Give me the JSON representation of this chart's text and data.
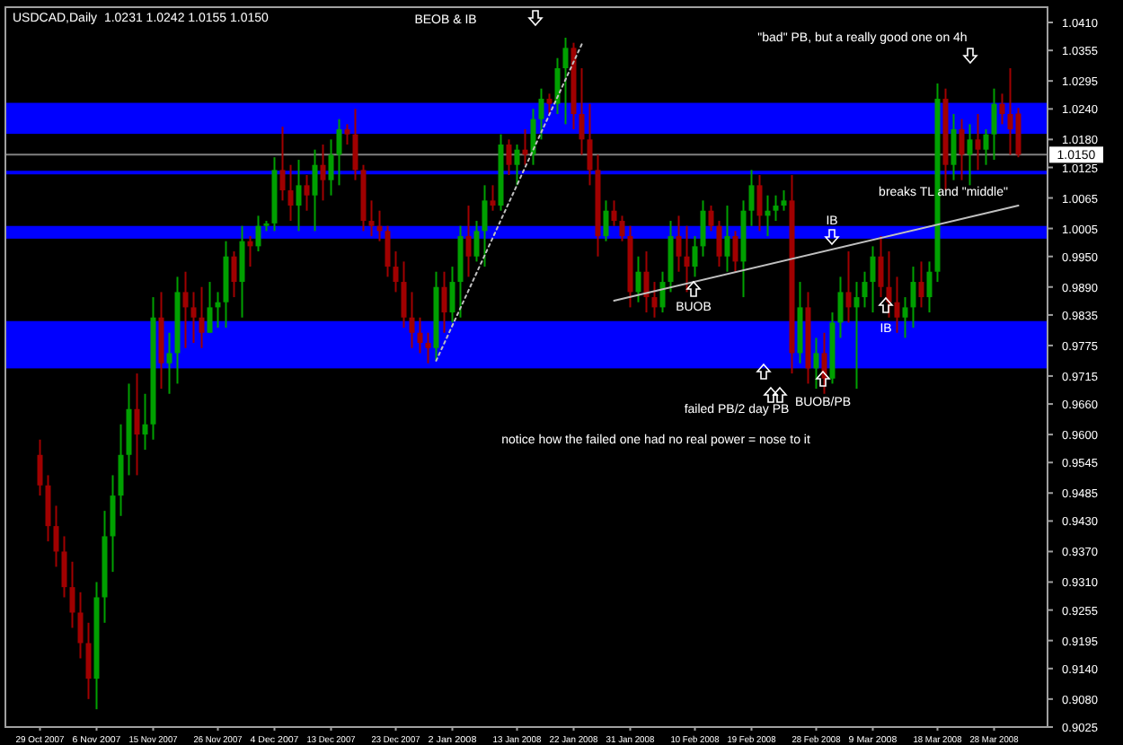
{
  "chart_data": {
    "type": "candlestick",
    "title": "USDCAD,Daily  1.0231 1.0242 1.0155 1.0150",
    "categories": [
      "29 Oct 2007",
      null,
      null,
      null,
      null,
      null,
      null,
      "6 Nov 2007",
      null,
      null,
      null,
      null,
      null,
      null,
      "15 Nov 2007",
      null,
      null,
      null,
      null,
      null,
      null,
      null,
      "26 Nov 2007",
      null,
      null,
      null,
      null,
      null,
      null,
      "4 Dec 2007",
      null,
      null,
      null,
      null,
      null,
      null,
      "13 Dec 2007",
      null,
      null,
      null,
      null,
      null,
      null,
      null,
      "23 Dec 2007",
      null,
      null,
      null,
      null,
      null,
      null,
      "2 Jan 2008",
      null,
      null,
      null,
      null,
      null,
      null,
      null,
      "13 Jan 2008",
      null,
      null,
      null,
      null,
      null,
      null,
      "22 Jan 2008",
      null,
      null,
      null,
      null,
      null,
      null,
      "31 Jan 2008",
      null,
      null,
      null,
      null,
      null,
      null,
      null,
      "10 Feb 2008",
      null,
      null,
      null,
      null,
      null,
      null,
      "19 Feb 2008",
      null,
      null,
      null,
      null,
      null,
      null,
      null,
      "28 Feb 2008",
      null,
      null,
      null,
      null,
      null,
      null,
      "9 Mar 2008",
      null,
      null,
      null,
      null,
      null,
      null,
      null,
      "18 Mar 2008",
      null,
      null,
      null,
      null,
      null,
      null,
      "28 Mar 2008",
      null,
      null,
      null
    ],
    "ohlc": [
      [
        0.956,
        0.959,
        0.948,
        0.95
      ],
      [
        0.95,
        0.952,
        0.939,
        0.942
      ],
      [
        0.942,
        0.946,
        0.934,
        0.937
      ],
      [
        0.937,
        0.94,
        0.928,
        0.93
      ],
      [
        0.93,
        0.935,
        0.922,
        0.925
      ],
      [
        0.925,
        0.929,
        0.916,
        0.919
      ],
      [
        0.919,
        0.923,
        0.908,
        0.912
      ],
      [
        0.912,
        0.931,
        0.906,
        0.928
      ],
      [
        0.928,
        0.945,
        0.923,
        0.94
      ],
      [
        0.94,
        0.952,
        0.933,
        0.948
      ],
      [
        0.948,
        0.962,
        0.944,
        0.956
      ],
      [
        0.956,
        0.97,
        0.952,
        0.965
      ],
      [
        0.965,
        0.972,
        0.952,
        0.96
      ],
      [
        0.96,
        0.968,
        0.957,
        0.962
      ],
      [
        0.962,
        0.987,
        0.959,
        0.983
      ],
      [
        0.983,
        0.988,
        0.969,
        0.974
      ],
      [
        0.974,
        0.98,
        0.968,
        0.976
      ],
      [
        0.976,
        0.991,
        0.97,
        0.988
      ],
      [
        0.988,
        0.992,
        0.977,
        0.985
      ],
      [
        0.985,
        0.988,
        0.978,
        0.983
      ],
      [
        0.983,
        0.989,
        0.977,
        0.98
      ],
      [
        0.98,
        0.99,
        0.98,
        0.985
      ],
      [
        0.985,
        0.988,
        0.981,
        0.986
      ],
      [
        0.986,
        0.998,
        0.981,
        0.995
      ],
      [
        0.995,
        0.996,
        0.987,
        0.99
      ],
      [
        0.99,
        1.001,
        0.983,
        0.998
      ],
      [
        0.998,
        0.999,
        0.993,
        0.997
      ],
      [
        0.997,
        1.003,
        0.996,
        1.001
      ],
      [
        1.001,
        1.002,
        1.0,
        1.0015
      ],
      [
        1.0015,
        1.0145,
        1.0,
        1.012
      ],
      [
        1.012,
        1.0205,
        1.006,
        1.008
      ],
      [
        1.008,
        1.013,
        1.002,
        1.005
      ],
      [
        1.005,
        1.014,
        1.0,
        1.009
      ],
      [
        1.009,
        1.011,
        1.004,
        1.007
      ],
      [
        1.007,
        1.016,
        1.0,
        1.013
      ],
      [
        1.013,
        1.017,
        1.006,
        1.01
      ],
      [
        1.01,
        1.018,
        1.007,
        1.015
      ],
      [
        1.015,
        1.022,
        1.009,
        1.02
      ],
      [
        1.02,
        1.021,
        1.017,
        1.019
      ],
      [
        1.019,
        1.024,
        1.01,
        1.012
      ],
      [
        1.012,
        1.013,
        1.0,
        1.002
      ],
      [
        1.002,
        1.006,
        0.999,
        1.001
      ],
      [
        1.001,
        1.004,
        0.998,
        1.0
      ],
      [
        1.0,
        1.001,
        0.991,
        0.993
      ],
      [
        0.993,
        0.996,
        0.988,
        0.99
      ],
      [
        0.99,
        0.994,
        0.981,
        0.983
      ],
      [
        0.983,
        0.988,
        0.977,
        0.98
      ],
      [
        0.98,
        0.983,
        0.976,
        0.978
      ],
      [
        0.978,
        0.98,
        0.974,
        0.977
      ],
      [
        0.977,
        0.992,
        0.9745,
        0.989
      ],
      [
        0.989,
        0.992,
        0.98,
        0.984
      ],
      [
        0.984,
        0.993,
        0.982,
        0.99
      ],
      [
        0.99,
        1.001,
        0.983,
        0.999
      ],
      [
        0.999,
        1.005,
        0.991,
        0.995
      ],
      [
        0.995,
        1.002,
        0.994,
        1.0
      ],
      [
        1.0,
        1.009,
        0.993,
        1.006
      ],
      [
        1.006,
        1.009,
        1.004,
        1.005
      ],
      [
        1.005,
        1.019,
        1.004,
        1.017
      ],
      [
        1.017,
        1.018,
        1.011,
        1.013
      ],
      [
        1.013,
        1.017,
        1.009,
        1.016
      ],
      [
        1.016,
        1.02,
        1.013,
        1.015
      ],
      [
        1.015,
        1.024,
        1.013,
        1.022
      ],
      [
        1.022,
        1.028,
        1.018,
        1.026
      ],
      [
        1.026,
        1.027,
        1.023,
        1.025
      ],
      [
        1.025,
        1.034,
        1.023,
        1.032
      ],
      [
        1.032,
        1.038,
        1.021,
        1.036
      ],
      [
        1.036,
        1.037,
        1.02,
        1.023
      ],
      [
        1.023,
        1.032,
        1.015,
        1.018
      ],
      [
        1.018,
        1.025,
        1.009,
        1.012
      ],
      [
        1.012,
        1.015,
        0.995,
        0.999
      ],
      [
        0.999,
        1.006,
        0.998,
        1.004
      ],
      [
        1.004,
        1.006,
        1.001,
        1.002
      ],
      [
        1.002,
        1.003,
        0.998,
        0.999
      ],
      [
        0.999,
        1.001,
        0.985,
        0.988
      ],
      [
        0.988,
        0.995,
        0.986,
        0.992
      ],
      [
        0.992,
        0.996,
        0.984,
        0.987
      ],
      [
        0.987,
        0.99,
        0.983,
        0.985
      ],
      [
        0.985,
        0.992,
        0.984,
        0.99
      ],
      [
        0.99,
        1.002,
        0.988,
        0.999
      ],
      [
        0.999,
        1.003,
        0.992,
        0.995
      ],
      [
        0.995,
        1.001,
        0.988,
        0.993
      ],
      [
        0.993,
        0.999,
        0.991,
        0.997
      ],
      [
        0.997,
        1.006,
        0.995,
        1.004
      ],
      [
        1.004,
        1.005,
        1.0,
        1.001
      ],
      [
        1.001,
        1.002,
        0.993,
        0.995
      ],
      [
        0.995,
        1.005,
        0.992,
        0.999
      ],
      [
        0.999,
        1.0,
        0.992,
        0.994
      ],
      [
        0.994,
        1.006,
        0.987,
        1.004
      ],
      [
        1.004,
        1.012,
        1.001,
        1.009
      ],
      [
        1.009,
        1.011,
        1.0,
        1.003
      ],
      [
        1.003,
        1.007,
        0.999,
        1.004
      ],
      [
        1.004,
        1.007,
        1.002,
        1.005
      ],
      [
        1.005,
        1.008,
        1.004,
        1.006
      ],
      [
        1.006,
        1.011,
        0.972,
        0.976
      ],
      [
        0.976,
        0.99,
        0.974,
        0.985
      ],
      [
        0.985,
        0.988,
        0.97,
        0.973
      ],
      [
        0.973,
        0.979,
        0.969,
        0.976
      ],
      [
        0.976,
        0.98,
        0.968,
        0.971
      ],
      [
        0.971,
        0.984,
        0.97,
        0.982
      ],
      [
        0.982,
        0.991,
        0.979,
        0.988
      ],
      [
        0.988,
        0.996,
        0.982,
        0.985
      ],
      [
        0.985,
        0.99,
        0.969,
        0.987
      ],
      [
        0.987,
        0.992,
        0.985,
        0.99
      ],
      [
        0.99,
        0.997,
        0.984,
        0.995
      ],
      [
        0.995,
        0.999,
        0.987,
        0.989
      ],
      [
        0.989,
        0.996,
        0.983,
        0.986
      ],
      [
        0.986,
        0.991,
        0.98,
        0.983
      ],
      [
        0.983,
        0.987,
        0.979,
        0.985
      ],
      [
        0.985,
        0.993,
        0.981,
        0.99
      ],
      [
        0.99,
        0.994,
        0.985,
        0.987
      ],
      [
        0.987,
        0.994,
        0.984,
        0.992
      ],
      [
        0.992,
        1.029,
        0.99,
        1.026
      ],
      [
        1.026,
        1.028,
        1.008,
        1.013
      ],
      [
        1.013,
        1.023,
        1.01,
        1.02
      ],
      [
        1.02,
        1.022,
        1.01,
        1.015
      ],
      [
        1.015,
        1.021,
        1.009,
        1.018
      ],
      [
        1.018,
        1.023,
        1.012,
        1.016
      ],
      [
        1.016,
        1.02,
        1.013,
        1.019
      ],
      [
        1.019,
        1.028,
        1.014,
        1.025
      ],
      [
        1.025,
        1.027,
        1.021,
        1.023
      ],
      [
        1.023,
        1.032,
        1.015,
        1.02
      ],
      [
        1.0231,
        1.0242,
        1.0145,
        1.015
      ]
    ],
    "colors": [
      "#a00000",
      "#a00000",
      "#a00000",
      "#a00000",
      "#a00000",
      "#a00000",
      "#a00000",
      "#00a000",
      "#00a000",
      "#00a000",
      "#00a000",
      "#00a000",
      "#a00000",
      "#00a000",
      "#00a000",
      "#a00000",
      "#00a000",
      "#00a000",
      "#a00000",
      "#a00000",
      "#a00000",
      "#00a000",
      "#00a000",
      "#00a000",
      "#a00000",
      "#00a000",
      "#a00000",
      "#00a000",
      "#00a000",
      "#00a000",
      "#a00000",
      "#a00000",
      "#00a000",
      "#a00000",
      "#00a000",
      "#a00000",
      "#00a000",
      "#00a000",
      "#a00000",
      "#a00000",
      "#a00000",
      "#a00000",
      "#a00000",
      "#a00000",
      "#a00000",
      "#a00000",
      "#a00000",
      "#a00000",
      "#a00000",
      "#00a000",
      "#a00000",
      "#00a000",
      "#00a000",
      "#a00000",
      "#00a000",
      "#00a000",
      "#a00000",
      "#00a000",
      "#a00000",
      "#00a000",
      "#a00000",
      "#00a000",
      "#00a000",
      "#a00000",
      "#00a000",
      "#00a000",
      "#a00000",
      "#a00000",
      "#a00000",
      "#a00000",
      "#00a000",
      "#a00000",
      "#a00000",
      "#a00000",
      "#00a000",
      "#a00000",
      "#a00000",
      "#00a000",
      "#00a000",
      "#a00000",
      "#a00000",
      "#00a000",
      "#00a000",
      "#a00000",
      "#a00000",
      "#00a000",
      "#a00000",
      "#00a000",
      "#00a000",
      "#a00000",
      "#00a000",
      "#00a000",
      "#00a000",
      "#a00000",
      "#00a000",
      "#a00000",
      "#00a000",
      "#a00000",
      "#00a000",
      "#00a000",
      "#a00000",
      "#00a000",
      "#00a000",
      "#00a000",
      "#a00000",
      "#a00000",
      "#a00000",
      "#00a000",
      "#00a000",
      "#a00000",
      "#00a000",
      "#00a000",
      "#a00000",
      "#00a000",
      "#a00000",
      "#00a000",
      "#a00000",
      "#00a000",
      "#00a000",
      "#a00000",
      "#a00000",
      "#a00000"
    ],
    "series": [
      {
        "type": "line",
        "color": "#c0c0c0",
        "line_style": "dotted",
        "values": [
          null,
          null,
          null,
          null,
          null,
          null,
          null,
          null,
          null,
          null,
          null,
          null,
          null,
          null,
          null,
          null,
          null,
          null,
          null,
          null,
          null,
          null,
          null,
          null,
          null,
          null,
          null,
          null,
          null,
          null,
          null,
          null,
          null,
          null,
          null,
          null,
          null,
          null,
          null,
          null,
          null,
          null,
          null,
          null,
          null,
          null,
          null,
          null,
          null,
          0.9745,
          null,
          null,
          null,
          null,
          null,
          null,
          null,
          null,
          null,
          null,
          null,
          null,
          null,
          null,
          null,
          null,
          null,
          1.0367,
          null,
          null,
          null,
          null,
          null,
          null,
          null,
          null,
          null,
          null,
          null,
          null,
          null,
          null,
          null,
          null,
          null,
          null,
          null,
          null,
          null,
          null,
          null,
          null,
          null,
          null,
          null,
          null,
          null,
          null,
          null,
          null,
          null,
          null,
          null,
          null,
          null,
          null,
          null,
          null,
          null,
          null,
          null,
          null,
          null,
          null,
          null,
          null,
          null,
          null,
          null,
          null,
          null,
          null
        ]
      },
      {
        "type": "line",
        "color": "#c0c0c0",
        "line_style": "solid",
        "values": [
          null,
          null,
          null,
          null,
          null,
          null,
          null,
          null,
          null,
          null,
          null,
          null,
          null,
          null,
          null,
          null,
          null,
          null,
          null,
          null,
          null,
          null,
          null,
          null,
          null,
          null,
          null,
          null,
          null,
          null,
          null,
          null,
          null,
          null,
          null,
          null,
          null,
          null,
          null,
          null,
          null,
          null,
          null,
          null,
          null,
          null,
          null,
          null,
          null,
          null,
          null,
          null,
          null,
          null,
          null,
          null,
          null,
          null,
          null,
          null,
          null,
          null,
          null,
          null,
          null,
          null,
          null,
          null,
          null,
          null,
          null,
          0.9863,
          null,
          null,
          null,
          null,
          null,
          null,
          null,
          null,
          null,
          null,
          null,
          null,
          null,
          null,
          null,
          null,
          null,
          null,
          null,
          null,
          null,
          null,
          null,
          null,
          null,
          null,
          null,
          null,
          null,
          null,
          null,
          null,
          null,
          null,
          null,
          null,
          null,
          null,
          null,
          null,
          null,
          null,
          null,
          null,
          null,
          null,
          null,
          null,
          null,
          1.005
        ]
      }
    ],
    "ylim": [
      0.9025,
      1.044
    ],
    "yticks": [
      {
        "value": 1.041,
        "label": "1.0410"
      },
      {
        "value": 1.0355,
        "label": "1.0355"
      },
      {
        "value": 1.0295,
        "label": "1.0295"
      },
      {
        "value": 1.024,
        "label": "1.0240"
      },
      {
        "value": 1.018,
        "label": "1.0180"
      },
      {
        "value": 1.0125,
        "label": "1.0125"
      },
      {
        "value": 1.0065,
        "label": "1.0065"
      },
      {
        "value": 1.0005,
        "label": "1.0005"
      },
      {
        "value": 0.995,
        "label": "0.9950"
      },
      {
        "value": 0.989,
        "label": "0.9890"
      },
      {
        "value": 0.9835,
        "label": "0.9835"
      },
      {
        "value": 0.9775,
        "label": "0.9775"
      },
      {
        "value": 0.9715,
        "label": "0.9715"
      },
      {
        "value": 0.966,
        "label": "0.9660"
      },
      {
        "value": 0.96,
        "label": "0.9600"
      },
      {
        "value": 0.9545,
        "label": "0.9545"
      },
      {
        "value": 0.9485,
        "label": "0.9485"
      },
      {
        "value": 0.943,
        "label": "0.9430"
      },
      {
        "value": 0.937,
        "label": "0.9370"
      },
      {
        "value": 0.931,
        "label": "0.9310"
      },
      {
        "value": 0.9255,
        "label": "0.9255"
      },
      {
        "value": 0.9195,
        "label": "0.9195"
      },
      {
        "value": 0.914,
        "label": "0.9140"
      },
      {
        "value": 0.908,
        "label": "0.9080"
      },
      {
        "value": 0.9025,
        "label": "0.9025"
      }
    ],
    "bands": [
      {
        "axis": "y",
        "from": 0.973,
        "to": 0.9823,
        "color": "#0000ff"
      },
      {
        "axis": "y",
        "from": 0.9985,
        "to": 1.001,
        "color": "#0000ff"
      },
      {
        "axis": "y",
        "from": 1.0191,
        "to": 1.0252,
        "color": "#0000ff"
      }
    ],
    "ref_lines": [
      {
        "axis": "y",
        "value": 1.0115,
        "color": "#0000ff"
      },
      {
        "axis": "y",
        "value": 1.015,
        "label": "1.0150",
        "color": "#808080"
      }
    ],
    "annotations": [
      "BEOB & IB",
      "\"bad\" PB, but a really good one on 4h",
      "IB",
      "breaks TL and \"middle\"",
      "BUOB",
      "IB",
      "failed PB/2 day PB",
      "BUOB/PB",
      "notice how the failed one had no real power = nose to it"
    ]
  }
}
